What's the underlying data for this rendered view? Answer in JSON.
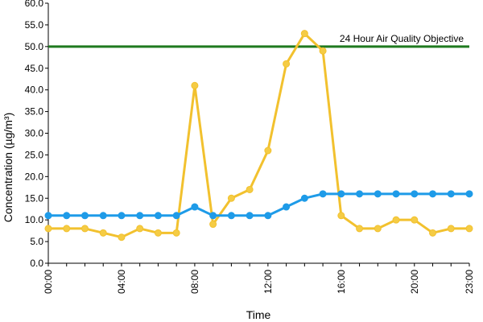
{
  "chart_data": {
    "type": "line",
    "xlabel": "Time",
    "ylabel": "Concentration (µg/m³)",
    "ylim": [
      0,
      60
    ],
    "y_ticks": [
      "0.0",
      "5.0",
      "10.0",
      "15.0",
      "20.0",
      "25.0",
      "30.0",
      "35.0",
      "40.0",
      "45.0",
      "50.0",
      "55.0",
      "60.0"
    ],
    "x": [
      0,
      1,
      2,
      3,
      4,
      5,
      6,
      7,
      8,
      9,
      10,
      11,
      12,
      13,
      14,
      15,
      16,
      17,
      18,
      19,
      20,
      21,
      22,
      23
    ],
    "xlim": [
      0,
      23
    ],
    "x_tick_values": [
      0,
      4,
      8,
      12,
      16,
      20,
      23
    ],
    "x_ticks": [
      "00:00",
      "04:00",
      "08:00",
      "12:00",
      "16:00",
      "20:00",
      "23:00"
    ],
    "grid": false,
    "series": [
      {
        "color": "#f2c12e",
        "marker_fill": "#f5cc45",
        "values": [
          8,
          8,
          8,
          7,
          6,
          8,
          7,
          7,
          41,
          9,
          15,
          17,
          26,
          46,
          53,
          49,
          11,
          8,
          8,
          10,
          10,
          7,
          8,
          8
        ]
      },
      {
        "color": "#1e9be8",
        "marker_fill": "#1e9be8",
        "values": [
          11,
          11,
          11,
          11,
          11,
          11,
          11,
          11,
          13,
          11,
          11,
          11,
          11,
          13,
          15,
          16,
          16,
          16,
          16,
          16,
          16,
          16,
          16,
          16
        ]
      }
    ],
    "objective": {
      "value": 50,
      "label": "24 Hour Air Quality Objective",
      "color": "#1f7a1f"
    }
  }
}
